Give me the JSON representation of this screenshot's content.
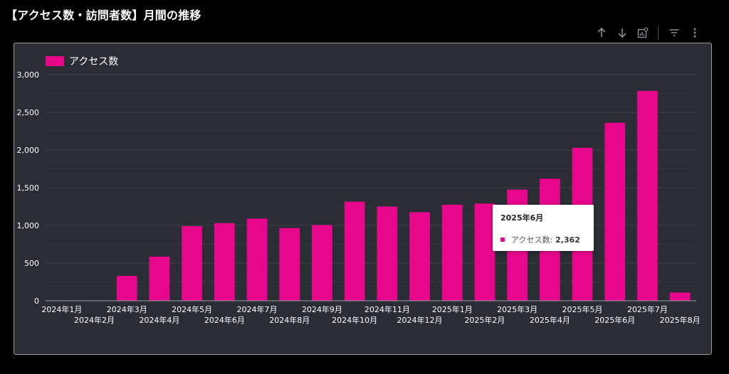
{
  "page_title": "【アクセス数・訪問者数】月間の推移",
  "toolbar": {
    "icons": [
      "arrow-up-icon",
      "arrow-down-icon",
      "explore-chart-icon",
      "filter-icon",
      "more-vert-icon"
    ]
  },
  "colors": {
    "bar": "#e8068c",
    "panel": "#2b2d35",
    "grid": "#3d3f47",
    "axis": "#9a9ca3"
  },
  "chart_data": {
    "type": "bar",
    "legend": "アクセス数",
    "legend_position": "top-left",
    "grid": true,
    "ylim": [
      0,
      3000
    ],
    "yticks": [
      0,
      500,
      1000,
      1500,
      2000,
      2500,
      3000
    ],
    "ytick_labels": [
      "0",
      "500",
      "1,000",
      "1,500",
      "2,000",
      "2,500",
      "3,000"
    ],
    "categories": [
      "2024年1月",
      "2024年2月",
      "2024年3月",
      "2024年4月",
      "2024年5月",
      "2024年6月",
      "2024年7月",
      "2024年8月",
      "2024年9月",
      "2024年10月",
      "2024年11月",
      "2024年12月",
      "2025年1月",
      "2025年2月",
      "2025年3月",
      "2025年4月",
      "2025年5月",
      "2025年6月",
      "2025年7月",
      "2025年8月"
    ],
    "series": [
      {
        "name": "アクセス数",
        "values": [
          0,
          0,
          330,
          585,
          990,
          1030,
          1090,
          965,
          1005,
          1315,
          1250,
          1175,
          1275,
          1290,
          1475,
          1620,
          2030,
          2362,
          2785,
          110
        ]
      }
    ]
  },
  "tooltip": {
    "title": "2025年6月",
    "series": "アクセス数:",
    "value": "2,362"
  }
}
